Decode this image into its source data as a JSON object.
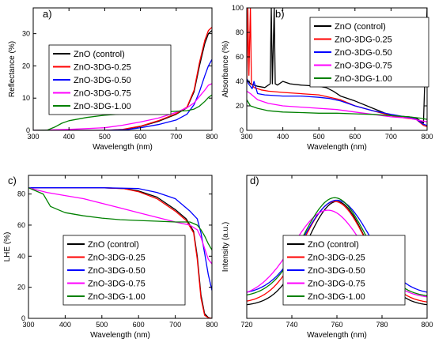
{
  "chart_data": [
    {
      "type": "line",
      "panel": "a)",
      "xlabel": "Wavelength (nm)",
      "ylabel": "Reflectance (%)",
      "xlim": [
        300,
        800
      ],
      "ylim": [
        0,
        38
      ],
      "xticks": [
        300,
        400,
        500,
        600,
        700,
        800
      ],
      "yticks": [
        0,
        10,
        20,
        30
      ],
      "legend": "center-left",
      "series": [
        {
          "name": "ZnO (control)",
          "color": "#000000",
          "points": [
            [
              300,
              0
            ],
            [
              400,
              0
            ],
            [
              500,
              0
            ],
            [
              550,
              0.2
            ],
            [
              600,
              1.2
            ],
            [
              650,
              2.8
            ],
            [
              700,
              5
            ],
            [
              730,
              7
            ],
            [
              750,
              12
            ],
            [
              765,
              20
            ],
            [
              780,
              27
            ],
            [
              790,
              30
            ],
            [
              800,
              31
            ]
          ]
        },
        {
          "name": "ZnO-3DG-0.25",
          "color": "#ff0000",
          "points": [
            [
              300,
              0
            ],
            [
              400,
              0
            ],
            [
              500,
              0
            ],
            [
              550,
              0.3
            ],
            [
              600,
              1.3
            ],
            [
              650,
              3
            ],
            [
              700,
              5.2
            ],
            [
              730,
              7.2
            ],
            [
              750,
              12.5
            ],
            [
              765,
              21
            ],
            [
              780,
              28
            ],
            [
              790,
              31
            ],
            [
              800,
              32
            ]
          ]
        },
        {
          "name": "ZnO-3DG-0.50",
          "color": "#0000ff",
          "points": [
            [
              300,
              0
            ],
            [
              400,
              0
            ],
            [
              500,
              0
            ],
            [
              560,
              0.2
            ],
            [
              600,
              0.8
            ],
            [
              650,
              1.8
            ],
            [
              700,
              3.2
            ],
            [
              730,
              5
            ],
            [
              750,
              8
            ],
            [
              765,
              12
            ],
            [
              780,
              17
            ],
            [
              790,
              20
            ],
            [
              800,
              22
            ]
          ]
        },
        {
          "name": "ZnO-3DG-0.75",
          "color": "#ff00ff",
          "points": [
            [
              300,
              0
            ],
            [
              400,
              0.3
            ],
            [
              500,
              0.8
            ],
            [
              550,
              1.6
            ],
            [
              600,
              2.6
            ],
            [
              650,
              3.8
            ],
            [
              700,
              5.6
            ],
            [
              730,
              7
            ],
            [
              750,
              8.5
            ],
            [
              765,
              10.5
            ],
            [
              780,
              12.5
            ],
            [
              790,
              14
            ],
            [
              800,
              14.5
            ]
          ]
        },
        {
          "name": "ZnO-3DG-1.00",
          "color": "#008000",
          "points": [
            [
              300,
              0
            ],
            [
              340,
              0.1
            ],
            [
              360,
              1
            ],
            [
              380,
              2.2
            ],
            [
              400,
              3
            ],
            [
              450,
              4
            ],
            [
              500,
              4.7
            ],
            [
              550,
              5.1
            ],
            [
              600,
              5.4
            ],
            [
              650,
              5.6
            ],
            [
              700,
              5.9
            ],
            [
              730,
              6.1
            ],
            [
              750,
              6.6
            ],
            [
              765,
              7.5
            ],
            [
              780,
              9
            ],
            [
              790,
              10.2
            ],
            [
              800,
              11
            ]
          ]
        }
      ]
    },
    {
      "type": "line",
      "panel": "b)",
      "xlabel": "Wavelength (nm)",
      "ylabel": "Absorbance (%)",
      "xlim": [
        300,
        800
      ],
      "ylim": [
        0,
        100
      ],
      "xticks": [
        300,
        400,
        500,
        600,
        700,
        800
      ],
      "yticks": [
        0,
        20,
        40,
        60,
        80,
        100
      ],
      "legend": "top-right",
      "series": [
        {
          "name": "ZnO (control)",
          "color": "#000000",
          "points": [
            [
              300,
              42
            ],
            [
              310,
              38
            ],
            [
              330,
              36
            ],
            [
              350,
              35
            ],
            [
              365,
              38
            ],
            [
              368,
              100
            ],
            [
              371,
              38
            ],
            [
              376,
              100
            ],
            [
              379,
              38
            ],
            [
              385,
              37
            ],
            [
              400,
              40
            ],
            [
              420,
              38
            ],
            [
              450,
              37
            ],
            [
              500,
              36
            ],
            [
              520,
              35
            ],
            [
              540,
              32
            ],
            [
              560,
              28
            ],
            [
              600,
              24
            ],
            [
              650,
              18
            ],
            [
              700,
              12
            ],
            [
              750,
              11
            ],
            [
              770,
              10
            ],
            [
              790,
              6
            ],
            [
              800,
              100
            ]
          ]
        },
        {
          "name": "ZnO-3DG-0.25",
          "color": "#ff0000",
          "points": [
            [
              300,
              38
            ],
            [
              303,
              100
            ],
            [
              306,
              45
            ],
            [
              310,
              100
            ],
            [
              313,
              38
            ],
            [
              320,
              35
            ],
            [
              340,
              33
            ],
            [
              360,
              32
            ],
            [
              400,
              31
            ],
            [
              500,
              29
            ],
            [
              560,
              25
            ],
            [
              600,
              20
            ],
            [
              650,
              16
            ],
            [
              700,
              12
            ],
            [
              740,
              10
            ],
            [
              770,
              9
            ],
            [
              790,
              4
            ],
            [
              800,
              3
            ]
          ]
        },
        {
          "name": "ZnO-3DG-0.50",
          "color": "#0000ff",
          "points": [
            [
              300,
              42
            ],
            [
              305,
              38
            ],
            [
              315,
              34
            ],
            [
              320,
              40
            ],
            [
              330,
              30
            ],
            [
              350,
              29
            ],
            [
              400,
              28
            ],
            [
              450,
              28
            ],
            [
              500,
              27
            ],
            [
              530,
              26
            ],
            [
              560,
              24
            ],
            [
              600,
              20
            ],
            [
              650,
              16
            ],
            [
              700,
              13
            ],
            [
              740,
              11
            ],
            [
              770,
              9
            ],
            [
              790,
              5
            ],
            [
              800,
              4
            ]
          ]
        },
        {
          "name": "ZnO-3DG-0.75",
          "color": "#ff00ff",
          "points": [
            [
              300,
              32
            ],
            [
              310,
              30
            ],
            [
              330,
              25
            ],
            [
              360,
              22
            ],
            [
              400,
              20
            ],
            [
              450,
              19
            ],
            [
              500,
              18
            ],
            [
              550,
              17
            ],
            [
              600,
              15
            ],
            [
              650,
              13
            ],
            [
              700,
              11
            ],
            [
              750,
              10
            ],
            [
              780,
              8
            ],
            [
              800,
              7
            ]
          ]
        },
        {
          "name": "ZnO-3DG-1.00",
          "color": "#008000",
          "points": [
            [
              300,
              25
            ],
            [
              310,
              20
            ],
            [
              330,
              18
            ],
            [
              360,
              16
            ],
            [
              400,
              15
            ],
            [
              450,
              14.5
            ],
            [
              500,
              14
            ],
            [
              550,
              14
            ],
            [
              600,
              13.5
            ],
            [
              650,
              13
            ],
            [
              700,
              12
            ],
            [
              750,
              11
            ],
            [
              780,
              10
            ],
            [
              800,
              9
            ]
          ]
        }
      ]
    },
    {
      "type": "line",
      "panel": "c)",
      "xlabel": "Wavelength (nm)",
      "ylabel": "LHE (%)",
      "xlim": [
        300,
        800
      ],
      "ylim": [
        0,
        92
      ],
      "xticks": [
        300,
        400,
        500,
        600,
        700,
        800
      ],
      "yticks": [
        0,
        20,
        40,
        60,
        80
      ],
      "legend": "bottom-center",
      "series": [
        {
          "name": "ZnO (control)",
          "color": "#000000",
          "points": [
            [
              300,
              84
            ],
            [
              400,
              84
            ],
            [
              500,
              84
            ],
            [
              560,
              83.5
            ],
            [
              600,
              82
            ],
            [
              650,
              78
            ],
            [
              700,
              70
            ],
            [
              730,
              64
            ],
            [
              750,
              56
            ],
            [
              760,
              40
            ],
            [
              770,
              15
            ],
            [
              780,
              3
            ],
            [
              790,
              0.5
            ],
            [
              800,
              0
            ]
          ]
        },
        {
          "name": "ZnO-3DG-0.25",
          "color": "#ff0000",
          "points": [
            [
              300,
              84
            ],
            [
              400,
              84
            ],
            [
              500,
              84
            ],
            [
              560,
              83.5
            ],
            [
              600,
              81.5
            ],
            [
              650,
              77
            ],
            [
              700,
              69
            ],
            [
              730,
              63
            ],
            [
              750,
              55
            ],
            [
              760,
              38
            ],
            [
              770,
              13
            ],
            [
              780,
              2
            ],
            [
              790,
              0.3
            ],
            [
              800,
              0
            ]
          ]
        },
        {
          "name": "ZnO-3DG-0.50",
          "color": "#0000ff",
          "points": [
            [
              300,
              84
            ],
            [
              400,
              84
            ],
            [
              500,
              84
            ],
            [
              600,
              83.5
            ],
            [
              650,
              81
            ],
            [
              700,
              77
            ],
            [
              740,
              69
            ],
            [
              760,
              64
            ],
            [
              770,
              55
            ],
            [
              780,
              42
            ],
            [
              790,
              28
            ],
            [
              800,
              18
            ]
          ]
        },
        {
          "name": "ZnO-3DG-0.75",
          "color": "#ff00ff",
          "points": [
            [
              300,
              84
            ],
            [
              350,
              81
            ],
            [
              400,
              79
            ],
            [
              450,
              77
            ],
            [
              500,
              74
            ],
            [
              550,
              71
            ],
            [
              600,
              68
            ],
            [
              650,
              65
            ],
            [
              700,
              62
            ],
            [
              740,
              60
            ],
            [
              760,
              57
            ],
            [
              770,
              52
            ],
            [
              780,
              45
            ],
            [
              790,
              38
            ],
            [
              800,
              35
            ]
          ]
        },
        {
          "name": "ZnO-3DG-1.00",
          "color": "#008000",
          "points": [
            [
              300,
              84
            ],
            [
              340,
              80
            ],
            [
              360,
              72
            ],
            [
              380,
              70
            ],
            [
              400,
              68
            ],
            [
              450,
              66
            ],
            [
              500,
              64.5
            ],
            [
              550,
              63.5
            ],
            [
              600,
              63
            ],
            [
              650,
              62.5
            ],
            [
              700,
              62
            ],
            [
              740,
              62
            ],
            [
              760,
              60
            ],
            [
              770,
              57
            ],
            [
              780,
              53
            ],
            [
              790,
              48
            ],
            [
              800,
              44
            ]
          ]
        }
      ]
    },
    {
      "type": "line",
      "panel": "d)",
      "xlabel": "Wavelength (nm)",
      "ylabel": "Intensity (a.u.)",
      "xlim": [
        720,
        800
      ],
      "ylim": [
        0,
        1.15
      ],
      "xticks": [
        720,
        740,
        760,
        780,
        800
      ],
      "yticks": [],
      "legend": "bottom-center",
      "series": [
        {
          "name": "ZnO (control)",
          "color": "#000000",
          "peak": 760,
          "width": 19,
          "amplitude": 0.84,
          "baseline": 0.1
        },
        {
          "name": "ZnO-3DG-0.25",
          "color": "#ff0000",
          "peak": 759,
          "width": 20,
          "amplitude": 0.82,
          "baseline": 0.12
        },
        {
          "name": "ZnO-3DG-0.50",
          "color": "#0000ff",
          "peak": 760,
          "width": 21,
          "amplitude": 0.76,
          "baseline": 0.19
        },
        {
          "name": "ZnO-3DG-0.75",
          "color": "#ff00ff",
          "peak": 756,
          "width": 22,
          "amplitude": 0.71,
          "baseline": 0.16
        },
        {
          "name": "ZnO-3DG-1.00",
          "color": "#008000",
          "peak": 759,
          "width": 20,
          "amplitude": 0.8,
          "baseline": 0.17
        }
      ]
    }
  ]
}
